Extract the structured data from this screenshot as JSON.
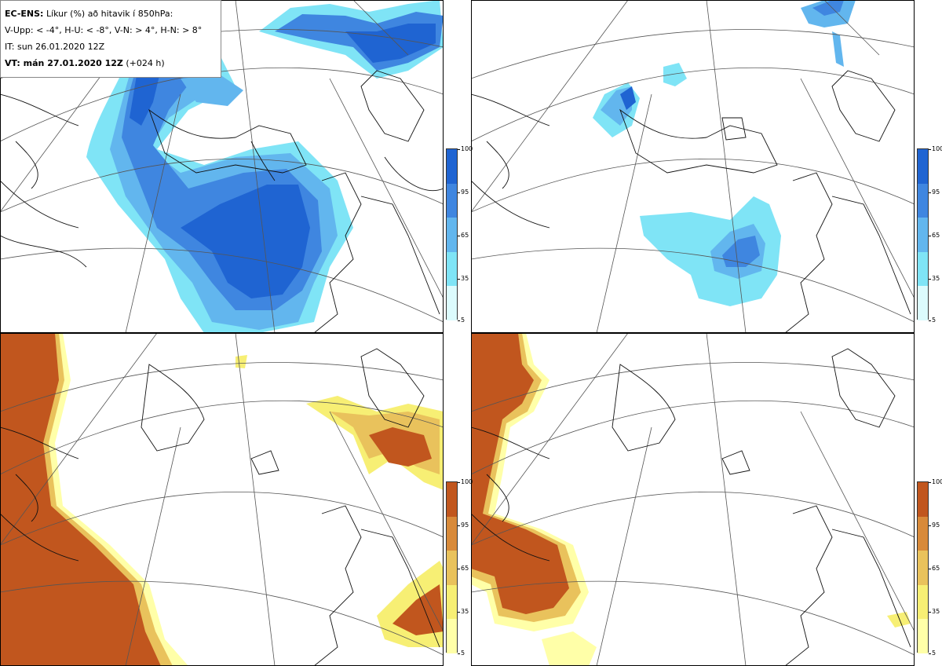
{
  "legend": {
    "line1_bold": "EC-ENS:",
    "line1_rest": "Líkur (%) að hitavik í 850hPa:",
    "line2": "V-Upp: < -4°, H-U: < -8°, V-N: > 4°, H-N: > 8°",
    "line3": "IT: sun 26.01.2020 12Z",
    "line4_bold": "VT: mán 27.01.2020 12Z",
    "line4_rest": "(+024 h)"
  },
  "colorbars": {
    "ticks": [
      "100",
      "95",
      "65",
      "35",
      "5"
    ],
    "cold_colors": [
      "#1f64d2",
      "#3f86e0",
      "#62b6ee",
      "#7fe4f6",
      "#dcfbfd"
    ],
    "warm_colors": [
      "#c1561e",
      "#d88a3a",
      "#e9c25c",
      "#f7ef74",
      "#ffffa8"
    ]
  },
  "panels": [
    {
      "id": "V-Upp",
      "scale": "cold"
    },
    {
      "id": "H-U",
      "scale": "cold"
    },
    {
      "id": "V-N",
      "scale": "warm"
    },
    {
      "id": "H-N",
      "scale": "warm"
    }
  ]
}
